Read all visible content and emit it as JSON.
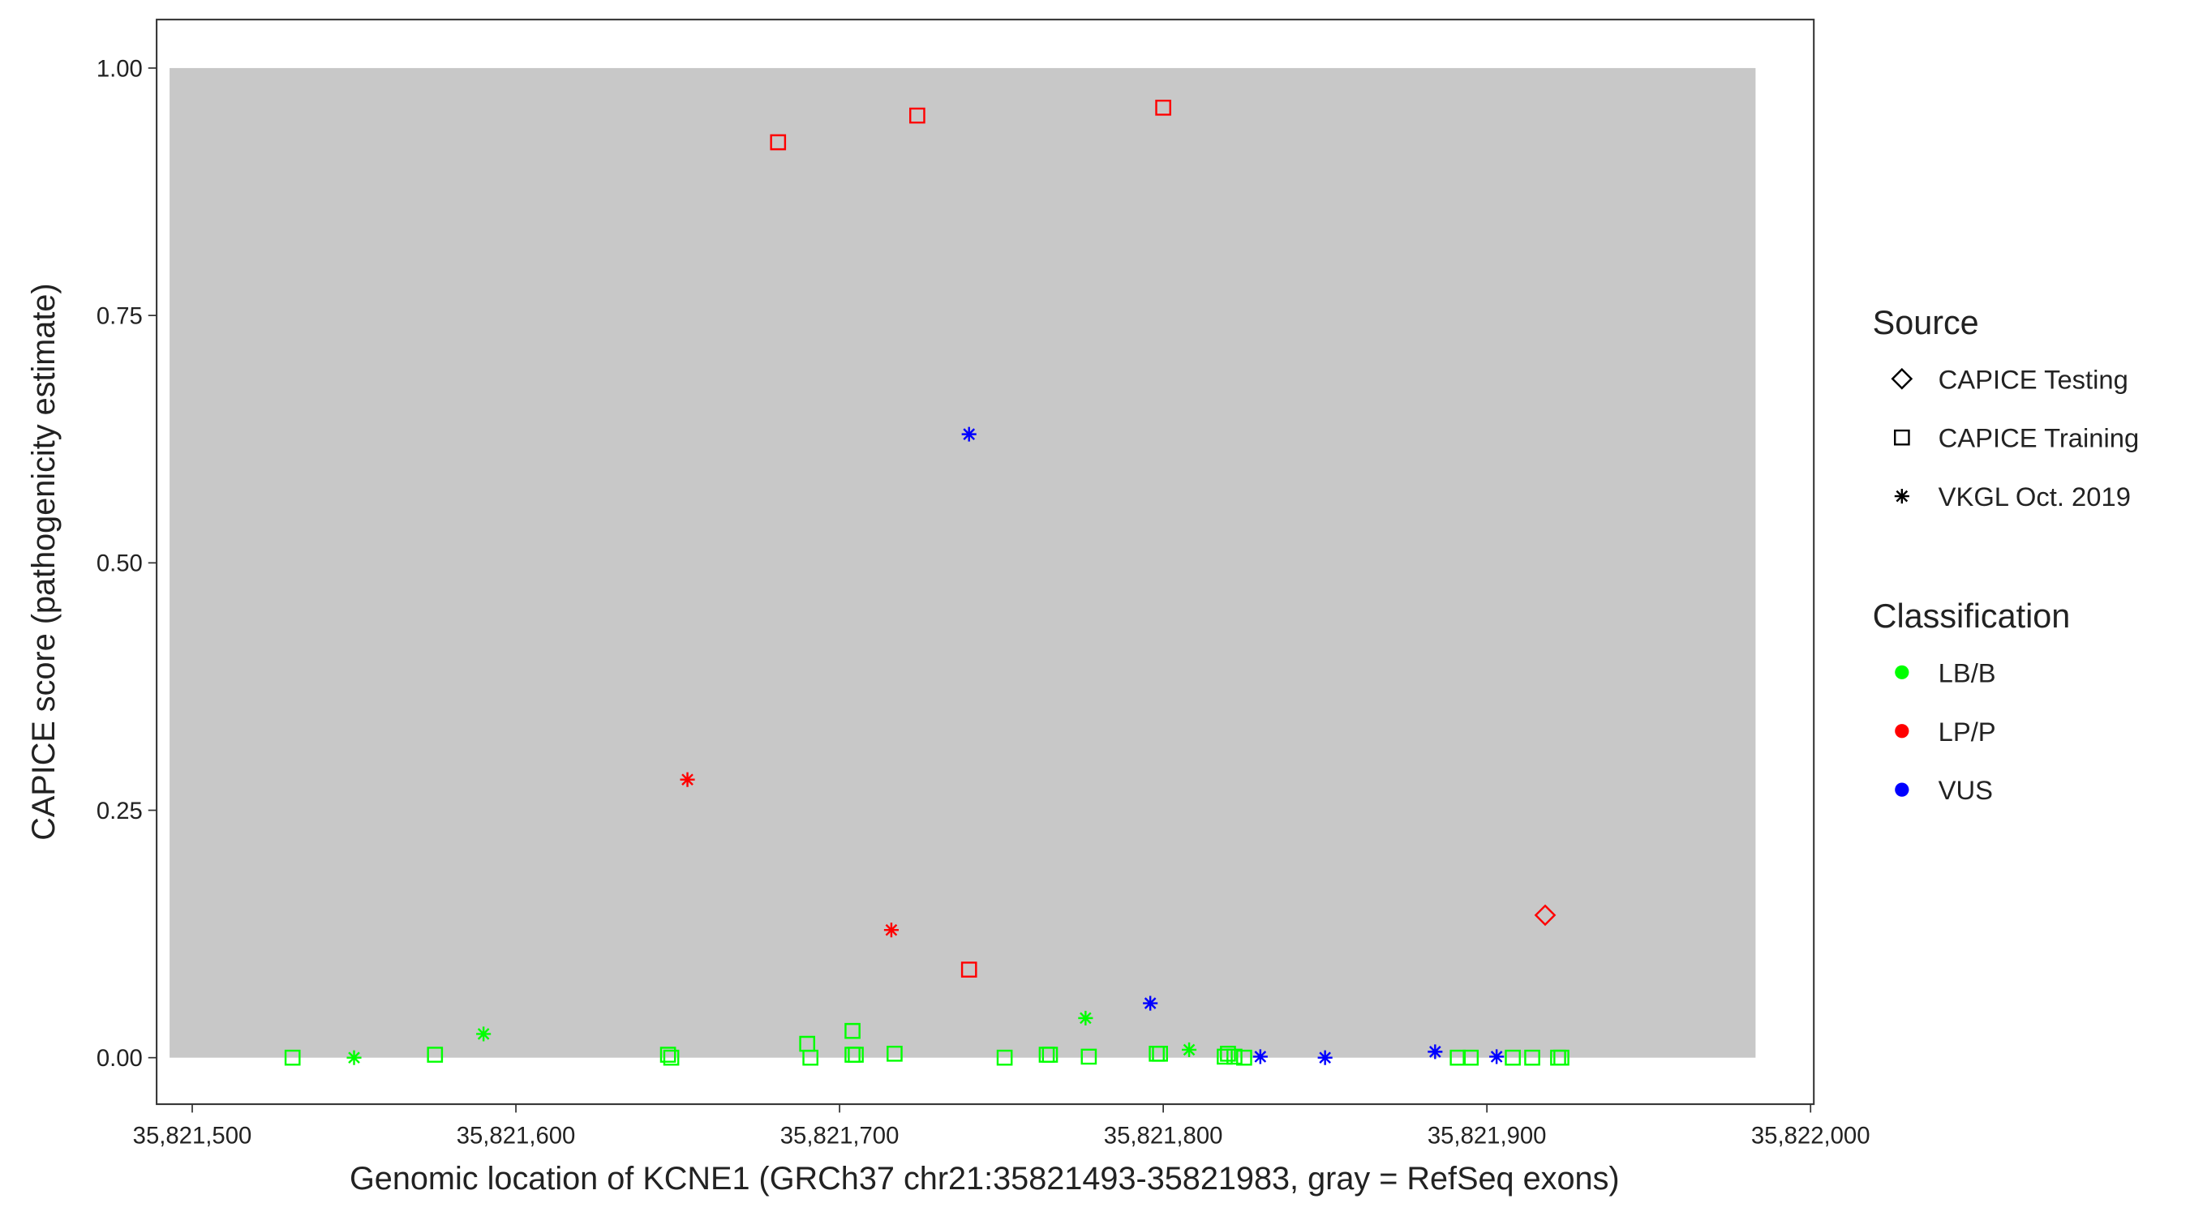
{
  "chart_data": {
    "type": "scatter",
    "xlabel": "Genomic location of KCNE1 (GRCh37 chr21:35821493-35821983, gray = RefSeq exons)",
    "ylabel": "CAPICE score (pathogenicity estimate)",
    "xlim": [
      35821489,
      35822001
    ],
    "ylim": [
      -0.047,
      1.049
    ],
    "xticks": [
      {
        "value": 35821500,
        "label": "35,821,500"
      },
      {
        "value": 35821600,
        "label": "35,821,600"
      },
      {
        "value": 35821700,
        "label": "35,821,700"
      },
      {
        "value": 35821800,
        "label": "35,821,800"
      },
      {
        "value": 35821900,
        "label": "35,821,900"
      },
      {
        "value": 35822000,
        "label": "35,822,000"
      }
    ],
    "yticks": [
      {
        "value": 0,
        "label": "0.00"
      },
      {
        "value": 0.25,
        "label": "0.25"
      },
      {
        "value": 0.5,
        "label": "0.50"
      },
      {
        "value": 0.75,
        "label": "0.75"
      },
      {
        "value": 1,
        "label": "1.00"
      }
    ],
    "exon": {
      "x": [
        35821493,
        35821983
      ],
      "y": [
        0,
        1
      ],
      "color": "#c8c8c8"
    },
    "legend": {
      "source": {
        "title": "Source",
        "entries": [
          {
            "label": "CAPICE Testing",
            "shape": "diamond"
          },
          {
            "label": "CAPICE Training",
            "shape": "square"
          },
          {
            "label": "VKGL Oct. 2019",
            "shape": "star"
          }
        ]
      },
      "classification": {
        "title": "Classification",
        "entries": [
          {
            "label": "LB/B",
            "color": "#00ff00"
          },
          {
            "label": "LP/P",
            "color": "#ff0000"
          },
          {
            "label": "VUS",
            "color": "#0000ff"
          }
        ]
      }
    },
    "series": [
      {
        "shape": "square",
        "color": "#ff0000",
        "x": [
          35821681,
          35821724,
          35821800,
          35821740
        ],
        "values": [
          0.925,
          0.952,
          0.96,
          0.089
        ]
      },
      {
        "shape": "star",
        "color": "#ff0000",
        "x": [
          35821653,
          35821716
        ],
        "values": [
          0.281,
          0.129
        ]
      },
      {
        "shape": "diamond",
        "color": "#ff0000",
        "x": [
          35821918
        ],
        "values": [
          0.144
        ]
      },
      {
        "shape": "star",
        "color": "#0000ff",
        "x": [
          35821740,
          35821796,
          35821830,
          35821850,
          35821884,
          35821903
        ],
        "values": [
          0.63,
          0.055,
          0.001,
          0,
          0.006,
          0.001
        ]
      },
      {
        "shape": "star",
        "color": "#00ff00",
        "x": [
          35821550,
          35821590,
          35821776,
          35821808
        ],
        "values": [
          0,
          0.024,
          0.04,
          0.008
        ]
      },
      {
        "shape": "square",
        "color": "#00ff00",
        "x": [
          35821531,
          35821575,
          35821647,
          35821648,
          35821690,
          35821691,
          35821704,
          35821704,
          35821705,
          35821717,
          35821751,
          35821764,
          35821765,
          35821777,
          35821798,
          35821799,
          35821819,
          35821820,
          35821822,
          35821825,
          35821891,
          35821895,
          35821908,
          35821914,
          35821922,
          35821923
        ],
        "values": [
          0,
          0.003,
          0.003,
          0,
          0.014,
          0,
          0.027,
          0.003,
          0.003,
          0.004,
          0,
          0.003,
          0.003,
          0.001,
          0.004,
          0.004,
          0.001,
          0.004,
          0.001,
          0,
          0,
          0,
          0,
          0,
          0,
          0
        ]
      }
    ]
  }
}
